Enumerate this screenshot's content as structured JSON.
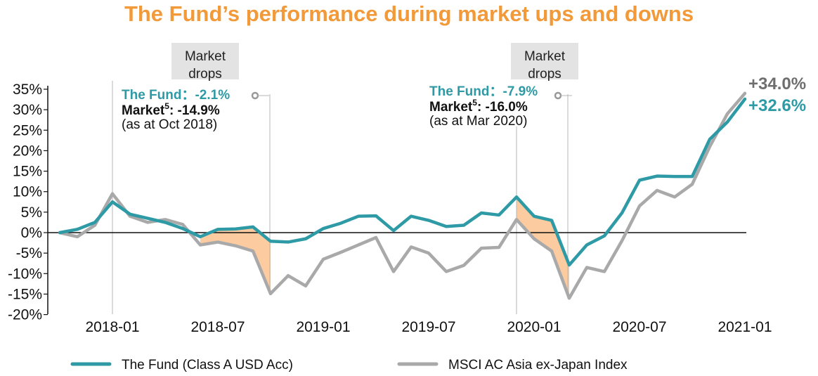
{
  "title": "The Fund’s performance during market ups and downs",
  "chart_data": {
    "type": "line",
    "ylim": [
      -20,
      35
    ],
    "y_ticks": [
      -20,
      -15,
      -10,
      -5,
      0,
      5,
      10,
      15,
      20,
      25,
      30,
      35
    ],
    "y_tick_labels": [
      "-20%",
      "-15%",
      "-10%",
      "-5%",
      "0%",
      "5%",
      "10%",
      "15%",
      "20%",
      "25%",
      "30%",
      "35%"
    ],
    "x_ticks": [
      "2018-01",
      "2018-07",
      "2019-01",
      "2019-07",
      "2020-01",
      "2020-07",
      "2021-01"
    ],
    "x_start": "2017-09",
    "series": [
      {
        "name": "The Fund (Class A USD Acc)",
        "color": "#2E9AA6",
        "values": [
          0,
          0.8,
          2.5,
          7.5,
          4.5,
          3.5,
          2.5,
          1.0,
          -1.0,
          0.8,
          0.9,
          1.4,
          -2.1,
          -2.3,
          -1.5,
          1.0,
          2.3,
          4.0,
          4.1,
          0.5,
          4.0,
          3.0,
          1.5,
          1.8,
          4.8,
          4.3,
          8.7,
          4.0,
          3.0,
          -7.9,
          -3.0,
          -0.8,
          4.8,
          12.8,
          13.8,
          13.7,
          13.7,
          22.8,
          27.0,
          32.6
        ]
      },
      {
        "name": "MSCI AC Asia ex-Japan Index",
        "color": "#A9A9A9",
        "values": [
          0,
          -1.0,
          1.8,
          9.5,
          4.0,
          2.5,
          3.2,
          2.0,
          -3.0,
          -2.3,
          -3.2,
          -4.5,
          -14.9,
          -10.5,
          -13.0,
          -6.5,
          -4.8,
          -3.0,
          -1.2,
          -9.5,
          -3.5,
          -5.0,
          -9.5,
          -8.0,
          -3.8,
          -3.6,
          3.2,
          -1.5,
          -4.5,
          -16.0,
          -8.5,
          -9.5,
          -2.0,
          6.5,
          10.3,
          8.7,
          11.8,
          21.0,
          29.0,
          34.0
        ]
      }
    ],
    "annotations": {
      "drop1": {
        "label_line1": "Market",
        "label_line2": "drops",
        "fund_text": "The Fund：-2.1%",
        "market_label": "Market",
        "market_sup": "5",
        "market_value": ": -14.9%",
        "asat": "(as at Oct 2018)"
      },
      "drop2": {
        "label_line1": "Market",
        "label_line2": "drops",
        "fund_text": "The Fund：-7.9%",
        "market_label": "Market",
        "market_sup": "5",
        "market_value": ": -16.0%",
        "asat": "(as at Mar 2020)"
      },
      "end_index_label": "+34.0%",
      "end_fund_label": "+32.6%"
    },
    "shade_color": "#FDCBA0",
    "box_color": "#E3E3E3"
  }
}
